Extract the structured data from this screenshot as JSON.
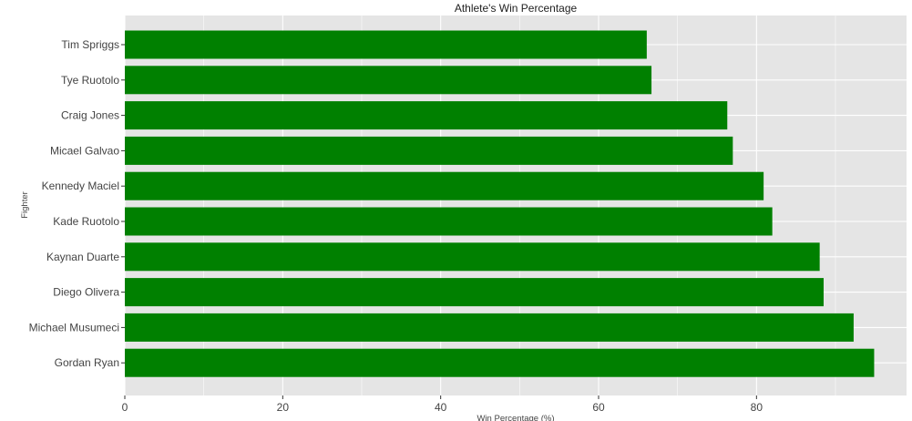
{
  "chart_data": {
    "type": "bar",
    "orientation": "horizontal",
    "title": "Athlete's Win Percentage",
    "xlabel": "Win Percentage (%)",
    "ylabel": "Fighter",
    "categories": [
      "Tim Spriggs",
      "Tye Ruotolo",
      "Craig Jones",
      "Micael Galvao",
      "Kennedy Maciel",
      "Kade Ruotolo",
      "Kaynan Duarte",
      "Diego Olivera",
      "Michael Musumeci",
      "Gordan Ryan"
    ],
    "values": [
      66.1,
      66.7,
      76.3,
      77.0,
      80.9,
      82.0,
      88.0,
      88.5,
      92.3,
      94.9
    ],
    "xlim": [
      0,
      99
    ],
    "xticks": [
      0,
      20,
      40,
      60,
      80
    ],
    "bar_color": "#008000",
    "panel_color": "#e5e5e5",
    "grid_color": "#ffffff",
    "grid": true,
    "legend": "none"
  }
}
